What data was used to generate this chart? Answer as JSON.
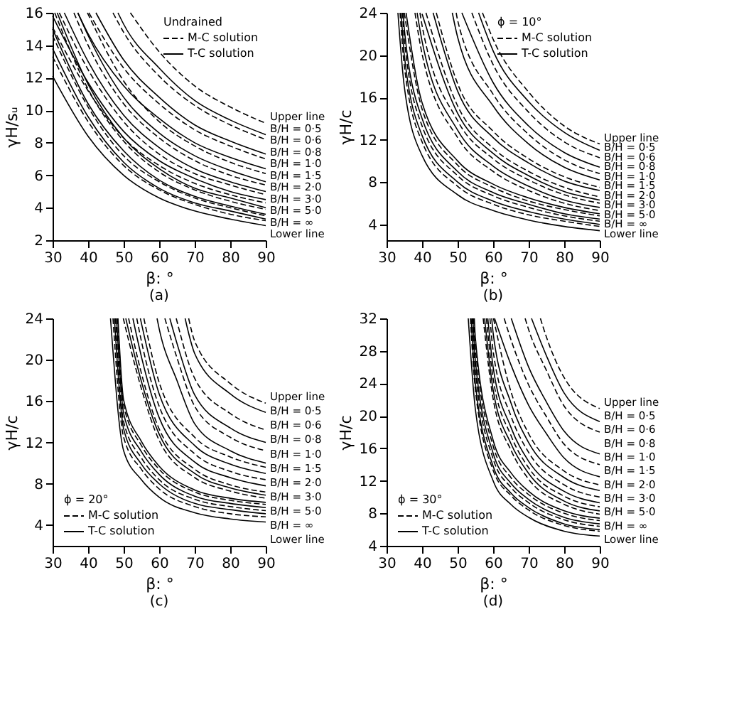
{
  "chart_data": [
    {
      "type": "line",
      "xlabel": "β: °",
      "ylabel": "γH/sᵤ",
      "legend_title": "Undrained",
      "legend": "top right",
      "xlim": [
        30,
        90
      ],
      "xticks": [
        30,
        40,
        50,
        60,
        70,
        80,
        90
      ],
      "ylim": [
        2,
        16
      ],
      "yticks": [
        2,
        4,
        6,
        8,
        10,
        12,
        14,
        16
      ],
      "series": [
        {
          "name": "M-C solution",
          "color": "#000000",
          "line_style": "dashed",
          "x": [
            51.9,
            60,
            70,
            80,
            90
          ],
          "values": [
            16,
            13.6,
            11.5,
            10.2,
            9.2
          ]
        },
        {
          "name": "T-C solution",
          "color": "#000000",
          "line_style": "solid",
          "x": [
            48.4,
            50,
            60,
            70,
            80,
            90
          ],
          "values": [
            16,
            15.3,
            12.6,
            10.6,
            9.4,
            8.5
          ]
        },
        {
          "color": "#000000",
          "line_style": "dashed",
          "x": [
            47,
            50,
            60,
            70,
            80,
            90
          ],
          "values": [
            16,
            14.8,
            12.1,
            10.3,
            9.1,
            8.2
          ]
        },
        {
          "color": "#000000",
          "line_style": "solid",
          "x": [
            42.2,
            50,
            60,
            70,
            80,
            90
          ],
          "values": [
            16,
            13.1,
            10.8,
            9.1,
            8.1,
            7.3
          ]
        },
        {
          "color": "#000000",
          "line_style": "dashed",
          "x": [
            40.2,
            50,
            60,
            70,
            80,
            90
          ],
          "values": [
            16,
            12.6,
            10.4,
            8.8,
            7.8,
            7.0
          ]
        },
        {
          "color": "#000000",
          "line_style": "solid",
          "x": [
            37.1,
            40,
            50,
            60,
            70,
            80,
            90
          ],
          "values": [
            16,
            14.7,
            11.5,
            9.5,
            8.0,
            7.1,
            6.4
          ]
        },
        {
          "color": "#000000",
          "line_style": "dashed",
          "x": [
            39.8,
            50,
            60,
            70,
            80,
            90
          ],
          "values": [
            16,
            11.8,
            9.3,
            7.8,
            6.8,
            6.1
          ]
        },
        {
          "color": "#000000",
          "line_style": "solid",
          "x": [
            37.1,
            40,
            50,
            60,
            70,
            80,
            90
          ],
          "values": [
            16,
            14.6,
            10.8,
            8.6,
            7.2,
            6.3,
            5.6
          ]
        },
        {
          "color": "#000000",
          "line_style": "dashed",
          "x": [
            36,
            40,
            50,
            60,
            70,
            80,
            90
          ],
          "values": [
            16,
            14.0,
            10.4,
            8.3,
            6.9,
            6.0,
            5.4
          ]
        },
        {
          "color": "#000000",
          "line_style": "solid",
          "x": [
            33.3,
            40,
            50,
            60,
            70,
            80,
            90
          ],
          "values": [
            16,
            13.0,
            9.7,
            7.7,
            6.4,
            5.6,
            5.0
          ]
        },
        {
          "color": "#000000",
          "line_style": "dashed",
          "x": [
            31.9,
            40,
            50,
            60,
            70,
            80,
            90
          ],
          "values": [
            16,
            12.5,
            9.3,
            7.3,
            6.1,
            5.4,
            4.8
          ]
        },
        {
          "color": "#000000",
          "line_style": "solid",
          "x": [
            30,
            40,
            50,
            60,
            70,
            80,
            90
          ],
          "values": [
            15.8,
            11.7,
            8.7,
            6.9,
            5.8,
            5.0,
            4.5
          ]
        },
        {
          "color": "#000000",
          "line_style": "dashed",
          "x": [
            30,
            40,
            50,
            60,
            70,
            80,
            90
          ],
          "values": [
            15.1,
            11.2,
            8.3,
            6.6,
            5.5,
            4.8,
            4.3
          ]
        },
        {
          "color": "#000000",
          "line_style": "solid",
          "x": [
            31.3,
            40,
            50,
            60,
            70,
            80,
            90
          ],
          "values": [
            16,
            11.6,
            8.3,
            6.4,
            5.2,
            4.6,
            4.0
          ]
        },
        {
          "color": "#000000",
          "line_style": "dashed",
          "x": [
            30.6,
            40,
            50,
            60,
            70,
            80,
            90
          ],
          "values": [
            16,
            11.3,
            8.1,
            6.2,
            5.1,
            4.4,
            3.9
          ]
        },
        {
          "color": "#000000",
          "line_style": "solid",
          "x": [
            30,
            40,
            50,
            60,
            70,
            80,
            90
          ],
          "values": [
            15.0,
            10.4,
            7.5,
            5.7,
            4.7,
            4.1,
            3.6
          ]
        },
        {
          "color": "#000000",
          "line_style": "dashed",
          "x": [
            30,
            40,
            50,
            60,
            70,
            80,
            90
          ],
          "values": [
            14.6,
            10.2,
            7.2,
            5.6,
            4.6,
            4.0,
            3.5
          ]
        },
        {
          "color": "#000000",
          "line_style": "solid",
          "x": [
            30,
            40,
            50,
            60,
            70,
            80,
            90
          ],
          "values": [
            13.8,
            9.6,
            6.8,
            5.2,
            4.3,
            3.8,
            3.3
          ]
        },
        {
          "color": "#000000",
          "line_style": "dashed",
          "x": [
            30,
            40,
            50,
            60,
            70,
            80,
            90
          ],
          "values": [
            13.3,
            9.3,
            6.6,
            5.1,
            4.2,
            3.6,
            3.2
          ]
        },
        {
          "color": "#000000",
          "line_style": "solid",
          "x": [
            30,
            40,
            50,
            60,
            70,
            80,
            90
          ],
          "values": [
            12.1,
            8.4,
            6.0,
            4.6,
            3.8,
            3.3,
            2.9
          ]
        }
      ],
      "annotations": [
        "Upper line",
        "B/H = 0·5",
        "B/H = 0·6",
        "B/H = 0·8",
        "B/H = 1·0",
        "B/H = 1·5",
        "B/H = 2·0",
        "B/H = 3·0",
        "B/H = 5·0",
        "B/H = ∞",
        "Lower line"
      ],
      "title": "(a)"
    },
    {
      "type": "line",
      "xlabel": "β: °",
      "ylabel": "γH/c",
      "legend_title": "ϕ = 10°",
      "legend": "top right",
      "xlim": [
        30,
        90
      ],
      "xticks": [
        30,
        40,
        50,
        60,
        70,
        80,
        90
      ],
      "ylim": [
        2.5,
        24
      ],
      "yticks": [
        4,
        8,
        12,
        16,
        20,
        24
      ],
      "series": [
        {
          "name": "M-C solution",
          "color": "#000000",
          "line_style": "dashed",
          "x": [
            57,
            60,
            70,
            80,
            90
          ],
          "values": [
            24,
            21.5,
            16.5,
            13.3,
            11.6
          ]
        },
        {
          "name": "T-C solution",
          "color": "#000000",
          "line_style": "solid",
          "x": [
            55.9,
            60,
            70,
            80,
            90
          ],
          "values": [
            24,
            20.4,
            15.6,
            12.7,
            11.0
          ]
        },
        {
          "color": "#000000",
          "line_style": "dashed",
          "x": [
            54,
            60,
            70,
            80,
            90
          ],
          "values": [
            24,
            19.1,
            14.6,
            11.8,
            10.3
          ]
        },
        {
          "color": "#000000",
          "line_style": "solid",
          "x": [
            51.2,
            60,
            70,
            80,
            90
          ],
          "values": [
            24,
            17.4,
            13.3,
            10.8,
            9.4
          ]
        },
        {
          "color": "#000000",
          "line_style": "dashed",
          "x": [
            49.6,
            50,
            60,
            70,
            80,
            90
          ],
          "values": [
            24,
            23.3,
            16.3,
            12.5,
            10.1,
            8.8
          ]
        },
        {
          "color": "#000000",
          "line_style": "solid",
          "x": [
            48.5,
            50,
            60,
            70,
            80,
            90
          ],
          "values": [
            24,
            21.7,
            15.2,
            11.6,
            9.4,
            8.2
          ]
        },
        {
          "color": "#000000",
          "line_style": "dashed",
          "x": [
            44,
            50,
            60,
            70,
            80,
            90
          ],
          "values": [
            24,
            17.3,
            12.8,
            10.2,
            8.5,
            7.5
          ]
        },
        {
          "color": "#000000",
          "line_style": "solid",
          "x": [
            43.1,
            50,
            60,
            70,
            80,
            90
          ],
          "values": [
            24,
            16.6,
            12.2,
            9.8,
            8.1,
            7.2
          ]
        },
        {
          "color": "#000000",
          "line_style": "dashed",
          "x": [
            41.1,
            50,
            60,
            70,
            80,
            90
          ],
          "values": [
            24,
            15.2,
            11.2,
            9.0,
            7.5,
            6.6
          ]
        },
        {
          "color": "#000000",
          "line_style": "solid",
          "x": [
            40,
            50,
            60,
            70,
            80,
            90
          ],
          "values": [
            23.9,
            14.5,
            10.7,
            8.6,
            7.1,
            6.3
          ]
        },
        {
          "color": "#000000",
          "line_style": "dashed",
          "x": [
            39.4,
            40,
            50,
            60,
            70,
            80,
            90
          ],
          "values": [
            24,
            22.8,
            13.8,
            10.2,
            8.2,
            6.8,
            6.0
          ]
        },
        {
          "color": "#000000",
          "line_style": "solid",
          "x": [
            38.6,
            40,
            50,
            60,
            70,
            80,
            90
          ],
          "values": [
            24,
            21.3,
            12.9,
            9.5,
            7.6,
            6.3,
            5.6
          ]
        },
        {
          "color": "#000000",
          "line_style": "dashed",
          "x": [
            38,
            40,
            50,
            60,
            70,
            80,
            90
          ],
          "values": [
            24,
            20.1,
            12.2,
            9.0,
            7.2,
            6.0,
            5.3
          ]
        },
        {
          "color": "#000000",
          "line_style": "solid",
          "x": [
            35.5,
            40,
            50,
            60,
            70,
            80,
            90
          ],
          "values": [
            24,
            15.5,
            10.0,
            7.8,
            6.5,
            5.6,
            5.0
          ]
        },
        {
          "color": "#000000",
          "line_style": "dashed",
          "x": [
            35,
            40,
            50,
            60,
            70,
            80,
            90
          ],
          "values": [
            24,
            14.9,
            9.6,
            7.5,
            6.2,
            5.4,
            4.8
          ]
        },
        {
          "color": "#000000",
          "line_style": "solid",
          "x": [
            34.7,
            35,
            40,
            50,
            60,
            70,
            80,
            90
          ],
          "values": [
            24,
            22.5,
            14.0,
            9.0,
            7.0,
            5.9,
            5.0,
            4.5
          ]
        },
        {
          "color": "#000000",
          "line_style": "dashed",
          "x": [
            34.5,
            35,
            40,
            50,
            60,
            70,
            80,
            90
          ],
          "values": [
            24,
            21.5,
            13.3,
            8.6,
            6.7,
            5.6,
            4.8,
            4.3
          ]
        },
        {
          "color": "#000000",
          "line_style": "solid",
          "x": [
            34.1,
            35,
            40,
            50,
            60,
            70,
            80,
            90
          ],
          "values": [
            24,
            20.0,
            12.4,
            8.0,
            6.2,
            5.2,
            4.5,
            4.0
          ]
        },
        {
          "color": "#000000",
          "line_style": "dashed",
          "x": [
            33.8,
            35,
            40,
            50,
            60,
            70,
            80,
            90
          ],
          "values": [
            24,
            19.0,
            11.8,
            7.6,
            5.9,
            4.9,
            4.3,
            3.8
          ]
        },
        {
          "color": "#000000",
          "line_style": "solid",
          "x": [
            33.2,
            35,
            40,
            50,
            60,
            70,
            80,
            90
          ],
          "values": [
            24,
            17.0,
            10.5,
            6.8,
            5.3,
            4.4,
            3.8,
            3.4
          ]
        }
      ],
      "annotations": [
        "Upper line",
        "B/H = 0·5",
        "B/H = 0·6",
        "B/H = 0·8",
        "B/H = 1·0",
        "B/H = 1·5",
        "B/H = 2·0",
        "B/H = 3·0",
        "B/H = 5·0",
        "B/H = ∞",
        "Lower line"
      ],
      "title": "(b)"
    },
    {
      "type": "line",
      "xlabel": "β: °",
      "ylabel": "γH/c",
      "legend_title": "ϕ = 20°",
      "legend": "bottom left",
      "xlim": [
        30,
        90
      ],
      "xticks": [
        30,
        40,
        50,
        60,
        70,
        80,
        90
      ],
      "ylim": [
        2,
        24
      ],
      "yticks": [
        4,
        8,
        12,
        16,
        20,
        24
      ],
      "series": [
        {
          "name": "M-C solution",
          "color": "#000000",
          "line_style": "dashed",
          "x": [
            68.3,
            70,
            80,
            90
          ],
          "values": [
            24,
            21.8,
            17.7,
            15.8
          ]
        },
        {
          "name": "T-C solution",
          "color": "#000000",
          "line_style": "solid",
          "x": [
            67.3,
            70,
            80,
            90
          ],
          "values": [
            24,
            20.6,
            16.7,
            14.9
          ]
        },
        {
          "color": "#000000",
          "line_style": "dashed",
          "x": [
            64.8,
            70,
            80,
            90
          ],
          "values": [
            24,
            18.2,
            14.8,
            13.2
          ]
        },
        {
          "color": "#000000",
          "line_style": "solid",
          "x": [
            63,
            65,
            70,
            80,
            90
          ],
          "values": [
            24,
            21.6,
            16.6,
            13.4,
            12.0
          ]
        },
        {
          "color": "#000000",
          "line_style": "dashed",
          "x": [
            61.6,
            65,
            70,
            80,
            90
          ],
          "values": [
            24,
            20.2,
            15.5,
            12.5,
            11.2
          ]
        },
        {
          "color": "#000000",
          "line_style": "solid",
          "x": [
            59.4,
            60,
            65,
            70,
            80,
            90
          ],
          "values": [
            24,
            23.0,
            18.0,
            13.8,
            11.2,
            10.0
          ]
        },
        {
          "color": "#000000",
          "line_style": "dashed",
          "x": [
            55.7,
            60,
            70,
            80,
            90
          ],
          "values": [
            24,
            17.8,
            12.5,
            10.6,
            9.6
          ]
        },
        {
          "color": "#000000",
          "line_style": "solid",
          "x": [
            54.7,
            60,
            70,
            80,
            90
          ],
          "values": [
            24,
            16.7,
            11.7,
            9.9,
            9.0
          ]
        },
        {
          "color": "#000000",
          "line_style": "dashed",
          "x": [
            53.7,
            55,
            60,
            70,
            80,
            90
          ],
          "values": [
            24,
            21.8,
            15.5,
            10.9,
            9.2,
            8.4
          ]
        },
        {
          "color": "#000000",
          "line_style": "solid",
          "x": [
            52.6,
            55,
            60,
            70,
            80,
            90
          ],
          "values": [
            24,
            20.3,
            14.4,
            10.1,
            8.6,
            7.8
          ]
        },
        {
          "color": "#000000",
          "line_style": "dashed",
          "x": [
            51.4,
            55,
            60,
            70,
            80,
            90
          ],
          "values": [
            24,
            18.7,
            13.3,
            9.4,
            7.9,
            7.2
          ]
        },
        {
          "color": "#000000",
          "line_style": "solid",
          "x": [
            50.6,
            55,
            60,
            70,
            80,
            90
          ],
          "values": [
            24,
            17.9,
            12.8,
            9.0,
            7.6,
            6.9
          ]
        },
        {
          "color": "#000000",
          "line_style": "dashed",
          "x": [
            49.9,
            55,
            60,
            70,
            80,
            90
          ],
          "values": [
            24,
            17.2,
            12.2,
            8.6,
            7.3,
            6.6
          ]
        },
        {
          "color": "#000000",
          "line_style": "solid",
          "x": [
            48.4,
            50,
            55,
            60,
            70,
            80,
            90
          ],
          "values": [
            24,
            16.1,
            12.1,
            9.7,
            7.4,
            6.6,
            6.2
          ]
        },
        {
          "color": "#000000",
          "line_style": "dashed",
          "x": [
            48.3,
            50,
            55,
            60,
            70,
            80,
            90
          ],
          "values": [
            24,
            15.6,
            11.7,
            9.4,
            7.2,
            6.4,
            6.0
          ]
        },
        {
          "color": "#000000",
          "line_style": "solid",
          "x": [
            48,
            50,
            55,
            60,
            70,
            80,
            90
          ],
          "values": [
            24,
            14.8,
            11.1,
            8.9,
            6.8,
            6.1,
            5.7
          ]
        },
        {
          "color": "#000000",
          "line_style": "dashed",
          "x": [
            47.7,
            50,
            55,
            60,
            70,
            80,
            90
          ],
          "values": [
            24,
            14.0,
            10.5,
            8.4,
            6.5,
            5.8,
            5.4
          ]
        },
        {
          "color": "#000000",
          "line_style": "solid",
          "x": [
            47.4,
            50,
            55,
            60,
            70,
            80,
            90
          ],
          "values": [
            24,
            13.3,
            9.9,
            8.0,
            6.1,
            5.5,
            5.1
          ]
        },
        {
          "color": "#000000",
          "line_style": "dashed",
          "x": [
            47,
            50,
            55,
            60,
            70,
            80,
            90
          ],
          "values": [
            24,
            12.5,
            9.4,
            7.5,
            5.8,
            5.1,
            4.8
          ]
        },
        {
          "color": "#000000",
          "line_style": "solid",
          "x": [
            46.3,
            50,
            55,
            60,
            70,
            80,
            90
          ],
          "values": [
            24,
            11.2,
            8.4,
            6.7,
            5.2,
            4.6,
            4.3
          ]
        }
      ],
      "annotations": [
        "Upper line",
        "B/H = 0·5",
        "B/H = 0·6",
        "B/H = 0·8",
        "B/H = 1·0",
        "B/H = 1·5",
        "B/H = 2·0",
        "B/H = 3·0",
        "B/H = 5·0",
        "B/H = ∞",
        "Lower line"
      ],
      "title": "(c)"
    },
    {
      "type": "line",
      "xlabel": "β: °",
      "ylabel": "γH/c",
      "legend_title": "ϕ = 30°",
      "legend": "bottom left",
      "xlim": [
        30,
        90
      ],
      "xticks": [
        30,
        40,
        50,
        60,
        70,
        80,
        90
      ],
      "ylim": [
        4,
        32
      ],
      "yticks": [
        4,
        8,
        12,
        16,
        20,
        24,
        28,
        32
      ],
      "series": [
        {
          "name": "M-C solution",
          "color": "#000000",
          "line_style": "dashed",
          "x": [
            73.3,
            75,
            80,
            90
          ],
          "values": [
            32,
            29.7,
            24.7,
            20.9
          ]
        },
        {
          "name": "T-C solution",
          "color": "#000000",
          "line_style": "solid",
          "x": [
            70.8,
            75,
            80,
            90
          ],
          "values": [
            32,
            27.4,
            22.8,
            19.3
          ]
        },
        {
          "color": "#000000",
          "line_style": "dashed",
          "x": [
            69,
            70,
            75,
            80,
            90
          ],
          "values": [
            32,
            30.6,
            25.6,
            21.2,
            18.0
          ]
        },
        {
          "color": "#000000",
          "line_style": "solid",
          "x": [
            65.1,
            70,
            75,
            80,
            90
          ],
          "values": [
            32,
            26.0,
            21.7,
            18.1,
            15.3
          ]
        },
        {
          "color": "#000000",
          "line_style": "dashed",
          "x": [
            63.1,
            65,
            70,
            75,
            80,
            90
          ],
          "values": [
            32,
            29.4,
            23.8,
            19.9,
            16.5,
            14.0
          ]
        },
        {
          "color": "#000000",
          "line_style": "solid",
          "x": [
            60.4,
            65,
            70,
            75,
            80,
            90
          ],
          "values": [
            32,
            26.3,
            21.3,
            17.8,
            14.8,
            12.5
          ]
        },
        {
          "color": "#000000",
          "line_style": "dashed",
          "x": [
            60.1,
            65,
            70,
            80,
            90
          ],
          "values": [
            32,
            23.0,
            17.8,
            13.2,
            11.5
          ]
        },
        {
          "color": "#000000",
          "line_style": "solid",
          "x": [
            59.6,
            60,
            65,
            70,
            80,
            90
          ],
          "values": [
            32,
            30.2,
            21.6,
            16.7,
            12.4,
            10.8
          ]
        },
        {
          "color": "#000000",
          "line_style": "dashed",
          "x": [
            59.1,
            60,
            65,
            70,
            80,
            90
          ],
          "values": [
            32,
            28.0,
            20.0,
            15.5,
            11.5,
            10.0
          ]
        },
        {
          "color": "#000000",
          "line_style": "solid",
          "x": [
            58.5,
            60,
            65,
            70,
            80,
            90
          ],
          "values": [
            32,
            26.0,
            18.6,
            14.4,
            10.7,
            9.3
          ]
        },
        {
          "color": "#000000",
          "line_style": "dashed",
          "x": [
            58.1,
            60,
            65,
            70,
            80,
            90
          ],
          "values": [
            32,
            24.6,
            17.6,
            13.6,
            10.1,
            8.8
          ]
        },
        {
          "color": "#000000",
          "line_style": "solid",
          "x": [
            57.6,
            60,
            65,
            70,
            80,
            90
          ],
          "values": [
            32,
            23.2,
            16.6,
            12.9,
            9.5,
            8.3
          ]
        },
        {
          "color": "#000000",
          "line_style": "dashed",
          "x": [
            57.2,
            60,
            65,
            70,
            80,
            90
          ],
          "values": [
            32,
            22.1,
            15.8,
            12.2,
            9.1,
            7.9
          ]
        },
        {
          "color": "#000000",
          "line_style": "solid",
          "x": [
            54.7,
            55,
            60,
            65,
            70,
            80,
            90
          ],
          "values": [
            32,
            29.6,
            17.0,
            13.0,
            10.7,
            8.3,
            7.4
          ]
        },
        {
          "color": "#000000",
          "line_style": "dashed",
          "x": [
            54.5,
            55,
            60,
            65,
            70,
            80,
            90
          ],
          "values": [
            32,
            28.4,
            16.3,
            12.4,
            10.3,
            8.0,
            7.1
          ]
        },
        {
          "color": "#000000",
          "line_style": "solid",
          "x": [
            54.3,
            55,
            60,
            65,
            70,
            80,
            90
          ],
          "values": [
            32,
            26.8,
            15.4,
            11.7,
            9.7,
            7.5,
            6.7
          ]
        },
        {
          "color": "#000000",
          "line_style": "dashed",
          "x": [
            54.1,
            55,
            60,
            65,
            70,
            80,
            90
          ],
          "values": [
            32,
            25.6,
            14.7,
            11.2,
            9.3,
            7.2,
            6.4
          ]
        },
        {
          "color": "#000000",
          "line_style": "solid",
          "x": [
            53.8,
            55,
            60,
            65,
            70,
            80,
            90
          ],
          "values": [
            32,
            24.0,
            13.8,
            10.5,
            8.7,
            6.7,
            6.0
          ]
        },
        {
          "color": "#000000",
          "line_style": "dashed",
          "x": [
            53.6,
            55,
            60,
            65,
            70,
            80,
            90
          ],
          "values": [
            32,
            23.2,
            13.3,
            10.2,
            8.4,
            6.5,
            5.8
          ]
        },
        {
          "color": "#000000",
          "line_style": "solid",
          "x": [
            53,
            55,
            60,
            65,
            70,
            80,
            90
          ],
          "values": [
            32,
            20.8,
            12.0,
            9.1,
            7.5,
            5.8,
            5.2
          ]
        }
      ],
      "annotations": [
        "Upper line",
        "B/H = 0·5",
        "B/H = 0·6",
        "B/H = 0·8",
        "B/H = 1·0",
        "B/H = 1·5",
        "B/H = 2·0",
        "B/H = 3·0",
        "B/H = 5·0",
        "B/H = ∞",
        "Lower line"
      ],
      "title": "(d)"
    }
  ]
}
